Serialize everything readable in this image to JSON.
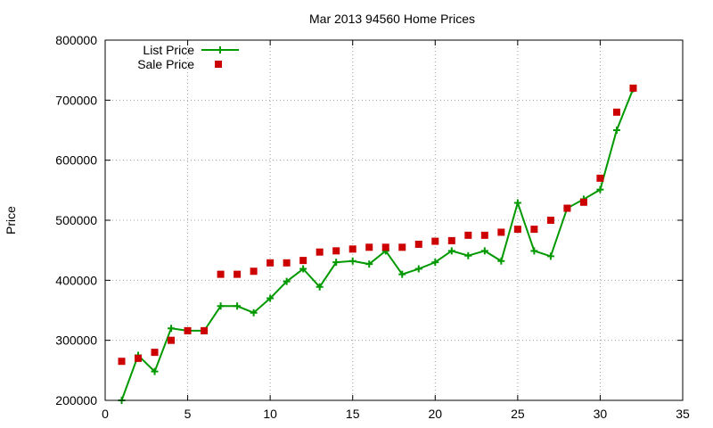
{
  "chart_data": {
    "type": "line",
    "title": "Mar 2013 94560 Home Prices",
    "xlabel": "",
    "ylabel": "Price",
    "xlim": [
      0,
      35
    ],
    "ylim": [
      200000,
      800000
    ],
    "x_ticks": [
      0,
      5,
      10,
      15,
      20,
      25,
      30,
      35
    ],
    "y_ticks": [
      200000,
      300000,
      400000,
      500000,
      600000,
      700000,
      800000
    ],
    "x_tick_labels": [
      "0",
      "5",
      "10",
      "15",
      "20",
      "25",
      "30",
      "35"
    ],
    "y_tick_labels": [
      "200000",
      "300000",
      "400000",
      "500000",
      "600000",
      "700000",
      "800000"
    ],
    "grid": true,
    "legend_position": "top-left",
    "series": [
      {
        "name": "List Price",
        "style": "linespoints",
        "marker": "plus",
        "color": "#009900",
        "x": [
          1,
          2,
          3,
          4,
          5,
          6,
          7,
          8,
          9,
          10,
          11,
          12,
          13,
          14,
          15,
          16,
          17,
          18,
          19,
          20,
          21,
          22,
          23,
          24,
          25,
          26,
          27,
          28,
          29,
          30,
          31,
          32
        ],
        "values": [
          200000,
          275000,
          248000,
          320000,
          316000,
          316000,
          357000,
          357000,
          346000,
          370000,
          398000,
          419000,
          389000,
          430000,
          432000,
          427000,
          449000,
          410000,
          419000,
          430000,
          449000,
          441000,
          449000,
          432000,
          529000,
          449000,
          440000,
          520000,
          535000,
          551000,
          650000,
          719000
        ]
      },
      {
        "name": "Sale Price",
        "style": "points",
        "marker": "square",
        "color": "#cc0000",
        "x": [
          1,
          2,
          3,
          4,
          5,
          6,
          7,
          8,
          9,
          10,
          11,
          12,
          13,
          14,
          15,
          16,
          17,
          18,
          19,
          20,
          21,
          22,
          23,
          24,
          25,
          26,
          27,
          28,
          29,
          30,
          31,
          32
        ],
        "values": [
          265000,
          270000,
          280000,
          300000,
          316000,
          316000,
          410000,
          410000,
          415000,
          429000,
          429000,
          433000,
          447000,
          449000,
          452000,
          455000,
          455000,
          455000,
          460000,
          465000,
          466000,
          475000,
          475000,
          480000,
          485000,
          485000,
          500000,
          520000,
          530000,
          570000,
          680000,
          720000
        ]
      }
    ]
  }
}
